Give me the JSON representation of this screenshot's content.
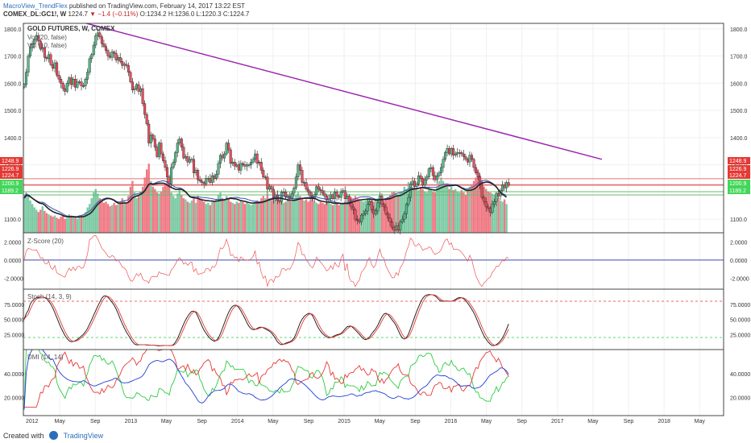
{
  "header": {
    "author": "MacroView_TrendFlex",
    "published_text": "published on TradingView.com, February 14, 2017 13:22 EST",
    "symbol": "COMEX_DL:GC1!, W",
    "last": "1224.7",
    "change": "−1.4 (−0.11%)",
    "o": "O:1234.2",
    "h": "H:1236.0",
    "l": "L:1220.3",
    "c": "C:1224.7"
  },
  "footer": {
    "created_with": "Created with",
    "brand": "TradingView"
  },
  "colors": {
    "up": "#53b987",
    "down": "#eb4d5c",
    "trendline": "#9c27b0",
    "zscore": "#ef5350",
    "stoch_k": "#111111",
    "stoch_d": "#e53935",
    "dmi_plus": "#2ecc40",
    "dmi_minus": "#e53935",
    "adx": "#1e3fd6",
    "vol_ma": "#222222",
    "vol_ma2": "#3f51b5"
  },
  "chart_data": [
    {
      "type": "candlestick",
      "title": "GOLD FUTURES, W, COMEX",
      "legend": [
        "Vol (20, false)",
        "Vol (10, false)"
      ],
      "y_ticks": [
        "1800.0",
        "1700.0",
        "1600.0",
        "1500.0",
        "1400.0",
        "1300.0",
        "1100.0"
      ],
      "ylim": [
        1050,
        1820
      ],
      "x_ticks": [
        "2012",
        "May",
        "Sep",
        "2013",
        "May",
        "Sep",
        "2014",
        "May",
        "Sep",
        "2015",
        "May",
        "Sep",
        "2016",
        "May",
        "Sep",
        "2017",
        "May",
        "Sep",
        "2018",
        "May"
      ],
      "price_labels": [
        {
          "text": "1248.9",
          "kind": "red"
        },
        {
          "text": "1226.9",
          "kind": "red"
        },
        {
          "text": "1224.7",
          "kind": "red"
        },
        {
          "text": "1200.9",
          "kind": "green"
        },
        {
          "text": "1189.2",
          "kind": "green"
        }
      ],
      "horizontal_levels": [
        1248.9,
        1226.9,
        1224.7,
        1200.9,
        1189.2
      ],
      "trendline": {
        "from": {
          "x": "2012-08",
          "y": 1820
        },
        "to": {
          "x": "2017-06",
          "y": 1320
        }
      },
      "closes": [
        1595,
        1640,
        1700,
        1730,
        1745,
        1760,
        1775,
        1755,
        1725,
        1730,
        1695,
        1690,
        1705,
        1668,
        1655,
        1675,
        1630,
        1615,
        1600,
        1580,
        1570,
        1600,
        1620,
        1595,
        1615,
        1585,
        1605,
        1605,
        1590,
        1590,
        1615,
        1640,
        1690,
        1705,
        1740,
        1775,
        1785,
        1770,
        1745,
        1735,
        1720,
        1700,
        1695,
        1715,
        1710,
        1685,
        1695,
        1680,
        1665,
        1670,
        1665,
        1640,
        1605,
        1575,
        1580,
        1595,
        1570,
        1580,
        1525,
        1485,
        1450,
        1380,
        1410,
        1395,
        1365,
        1330,
        1380,
        1340,
        1315,
        1290,
        1255,
        1230,
        1290,
        1310,
        1345,
        1380,
        1395,
        1365,
        1325,
        1330,
        1310,
        1320,
        1320,
        1270,
        1280,
        1245,
        1240,
        1235,
        1230,
        1250,
        1250,
        1235,
        1260,
        1250,
        1265,
        1305,
        1335,
        1325,
        1340,
        1380,
        1355,
        1305,
        1310,
        1295,
        1300,
        1280,
        1305,
        1300,
        1295,
        1300,
        1300,
        1310,
        1320,
        1340,
        1305,
        1310,
        1280,
        1255,
        1255,
        1210,
        1220,
        1210,
        1175,
        1190,
        1170,
        1165,
        1200,
        1200,
        1180,
        1185,
        1175,
        1195,
        1215,
        1255,
        1300,
        1280,
        1235,
        1235,
        1210,
        1200,
        1185,
        1175,
        1190,
        1220,
        1210,
        1205,
        1195,
        1185,
        1170,
        1175,
        1190,
        1175,
        1200,
        1185,
        1180,
        1200,
        1205,
        1175,
        1185,
        1160,
        1145,
        1135,
        1100,
        1095,
        1090,
        1115,
        1120,
        1130,
        1155,
        1165,
        1135,
        1120,
        1130,
        1160,
        1185,
        1155,
        1145,
        1120,
        1105,
        1090,
        1070,
        1060,
        1075,
        1060,
        1090,
        1100,
        1120,
        1155,
        1180,
        1230,
        1240,
        1220,
        1230,
        1260,
        1250,
        1225,
        1245,
        1255,
        1285,
        1290,
        1260,
        1245,
        1260,
        1270,
        1290,
        1320,
        1345,
        1360,
        1340,
        1360,
        1335,
        1340,
        1345,
        1345,
        1340,
        1330,
        1320,
        1310,
        1335,
        1320,
        1290,
        1270,
        1255,
        1225,
        1180,
        1165,
        1145,
        1140,
        1125,
        1155,
        1165,
        1195,
        1185,
        1205,
        1225,
        1215,
        1235,
        1224.7
      ],
      "volume_relative": [
        0.3,
        0.35,
        0.32,
        0.28,
        0.25,
        0.22,
        0.2,
        0.18,
        0.2,
        0.23,
        0.19,
        0.17,
        0.16,
        0.15,
        0.14,
        0.15,
        0.13,
        0.12,
        0.14,
        0.15,
        0.12,
        0.13,
        0.16,
        0.15,
        0.14,
        0.13,
        0.12,
        0.14,
        0.15,
        0.16,
        0.18,
        0.22,
        0.25,
        0.3,
        0.35,
        0.38,
        0.34,
        0.3,
        0.28,
        0.26,
        0.27,
        0.25,
        0.23,
        0.24,
        0.26,
        0.24,
        0.25,
        0.27,
        0.3,
        0.28,
        0.26,
        0.32,
        0.4,
        0.45,
        0.35,
        0.3,
        0.32,
        0.36,
        0.4,
        0.48,
        0.55,
        0.6,
        0.45,
        0.4,
        0.38,
        0.35,
        0.34,
        0.36,
        0.4,
        0.42,
        0.45,
        0.48,
        0.35,
        0.32,
        0.3,
        0.34,
        0.38,
        0.33,
        0.3,
        0.29,
        0.27,
        0.26,
        0.28,
        0.3,
        0.26,
        0.32,
        0.3,
        0.28,
        0.27,
        0.25,
        0.26,
        0.24,
        0.28,
        0.27,
        0.29,
        0.33,
        0.35,
        0.3,
        0.28,
        0.32,
        0.3,
        0.27,
        0.26,
        0.25,
        0.27,
        0.26,
        0.28,
        0.27,
        0.25,
        0.26,
        0.25,
        0.24,
        0.25,
        0.27,
        0.28,
        0.26,
        0.3,
        0.32,
        0.3,
        0.34,
        0.3,
        0.28,
        0.32,
        0.3,
        0.29,
        0.27,
        0.28,
        0.26,
        0.27,
        0.28,
        0.29,
        0.27,
        0.3,
        0.33,
        0.35,
        0.32,
        0.3,
        0.28,
        0.29,
        0.27,
        0.28,
        0.3,
        0.27,
        0.26,
        0.25,
        0.27,
        0.26,
        0.25,
        0.27,
        0.26,
        0.25,
        0.24,
        0.26,
        0.25,
        0.24,
        0.26,
        0.25,
        0.27,
        0.26,
        0.29,
        0.31,
        0.3,
        0.32,
        0.3,
        0.29,
        0.28,
        0.27,
        0.28,
        0.29,
        0.3,
        0.28,
        0.27,
        0.28,
        0.3,
        0.32,
        0.29,
        0.28,
        0.3,
        0.31,
        0.33,
        0.35,
        0.36,
        0.34,
        0.33,
        0.35,
        0.36,
        0.4,
        0.38,
        0.44,
        0.42,
        0.4,
        0.38,
        0.36,
        0.37,
        0.39,
        0.38,
        0.36,
        0.35,
        0.4,
        0.38,
        0.36,
        0.35,
        0.4,
        0.45,
        0.48,
        0.45,
        0.42,
        0.41,
        0.38,
        0.4,
        0.37,
        0.38,
        0.36,
        0.35,
        0.37,
        0.35,
        0.33,
        0.38,
        0.4,
        0.42,
        0.45,
        0.48,
        0.55,
        0.5,
        0.45,
        0.4,
        0.38,
        0.36,
        0.35,
        0.34,
        0.33,
        0.32,
        0.3,
        0.28,
        0.27,
        0.29,
        0.25
      ]
    },
    {
      "type": "line",
      "title": "Z-Score (20)",
      "y_ticks": [
        "2.0000",
        "0.0000",
        "-2.0000"
      ],
      "ylim": [
        -3.2,
        3.0
      ]
    },
    {
      "type": "line",
      "title": "Stoch (14, 3, 9)",
      "y_ticks": [
        "75.0000",
        "50.0000",
        "25.0000"
      ],
      "ylim": [
        0,
        100
      ],
      "reference_lines": [
        80,
        20
      ]
    },
    {
      "type": "line",
      "title": "DMI (14, 14)",
      "y_ticks": [
        "40.0000",
        "20.0000"
      ],
      "ylim": [
        5,
        60
      ]
    }
  ]
}
